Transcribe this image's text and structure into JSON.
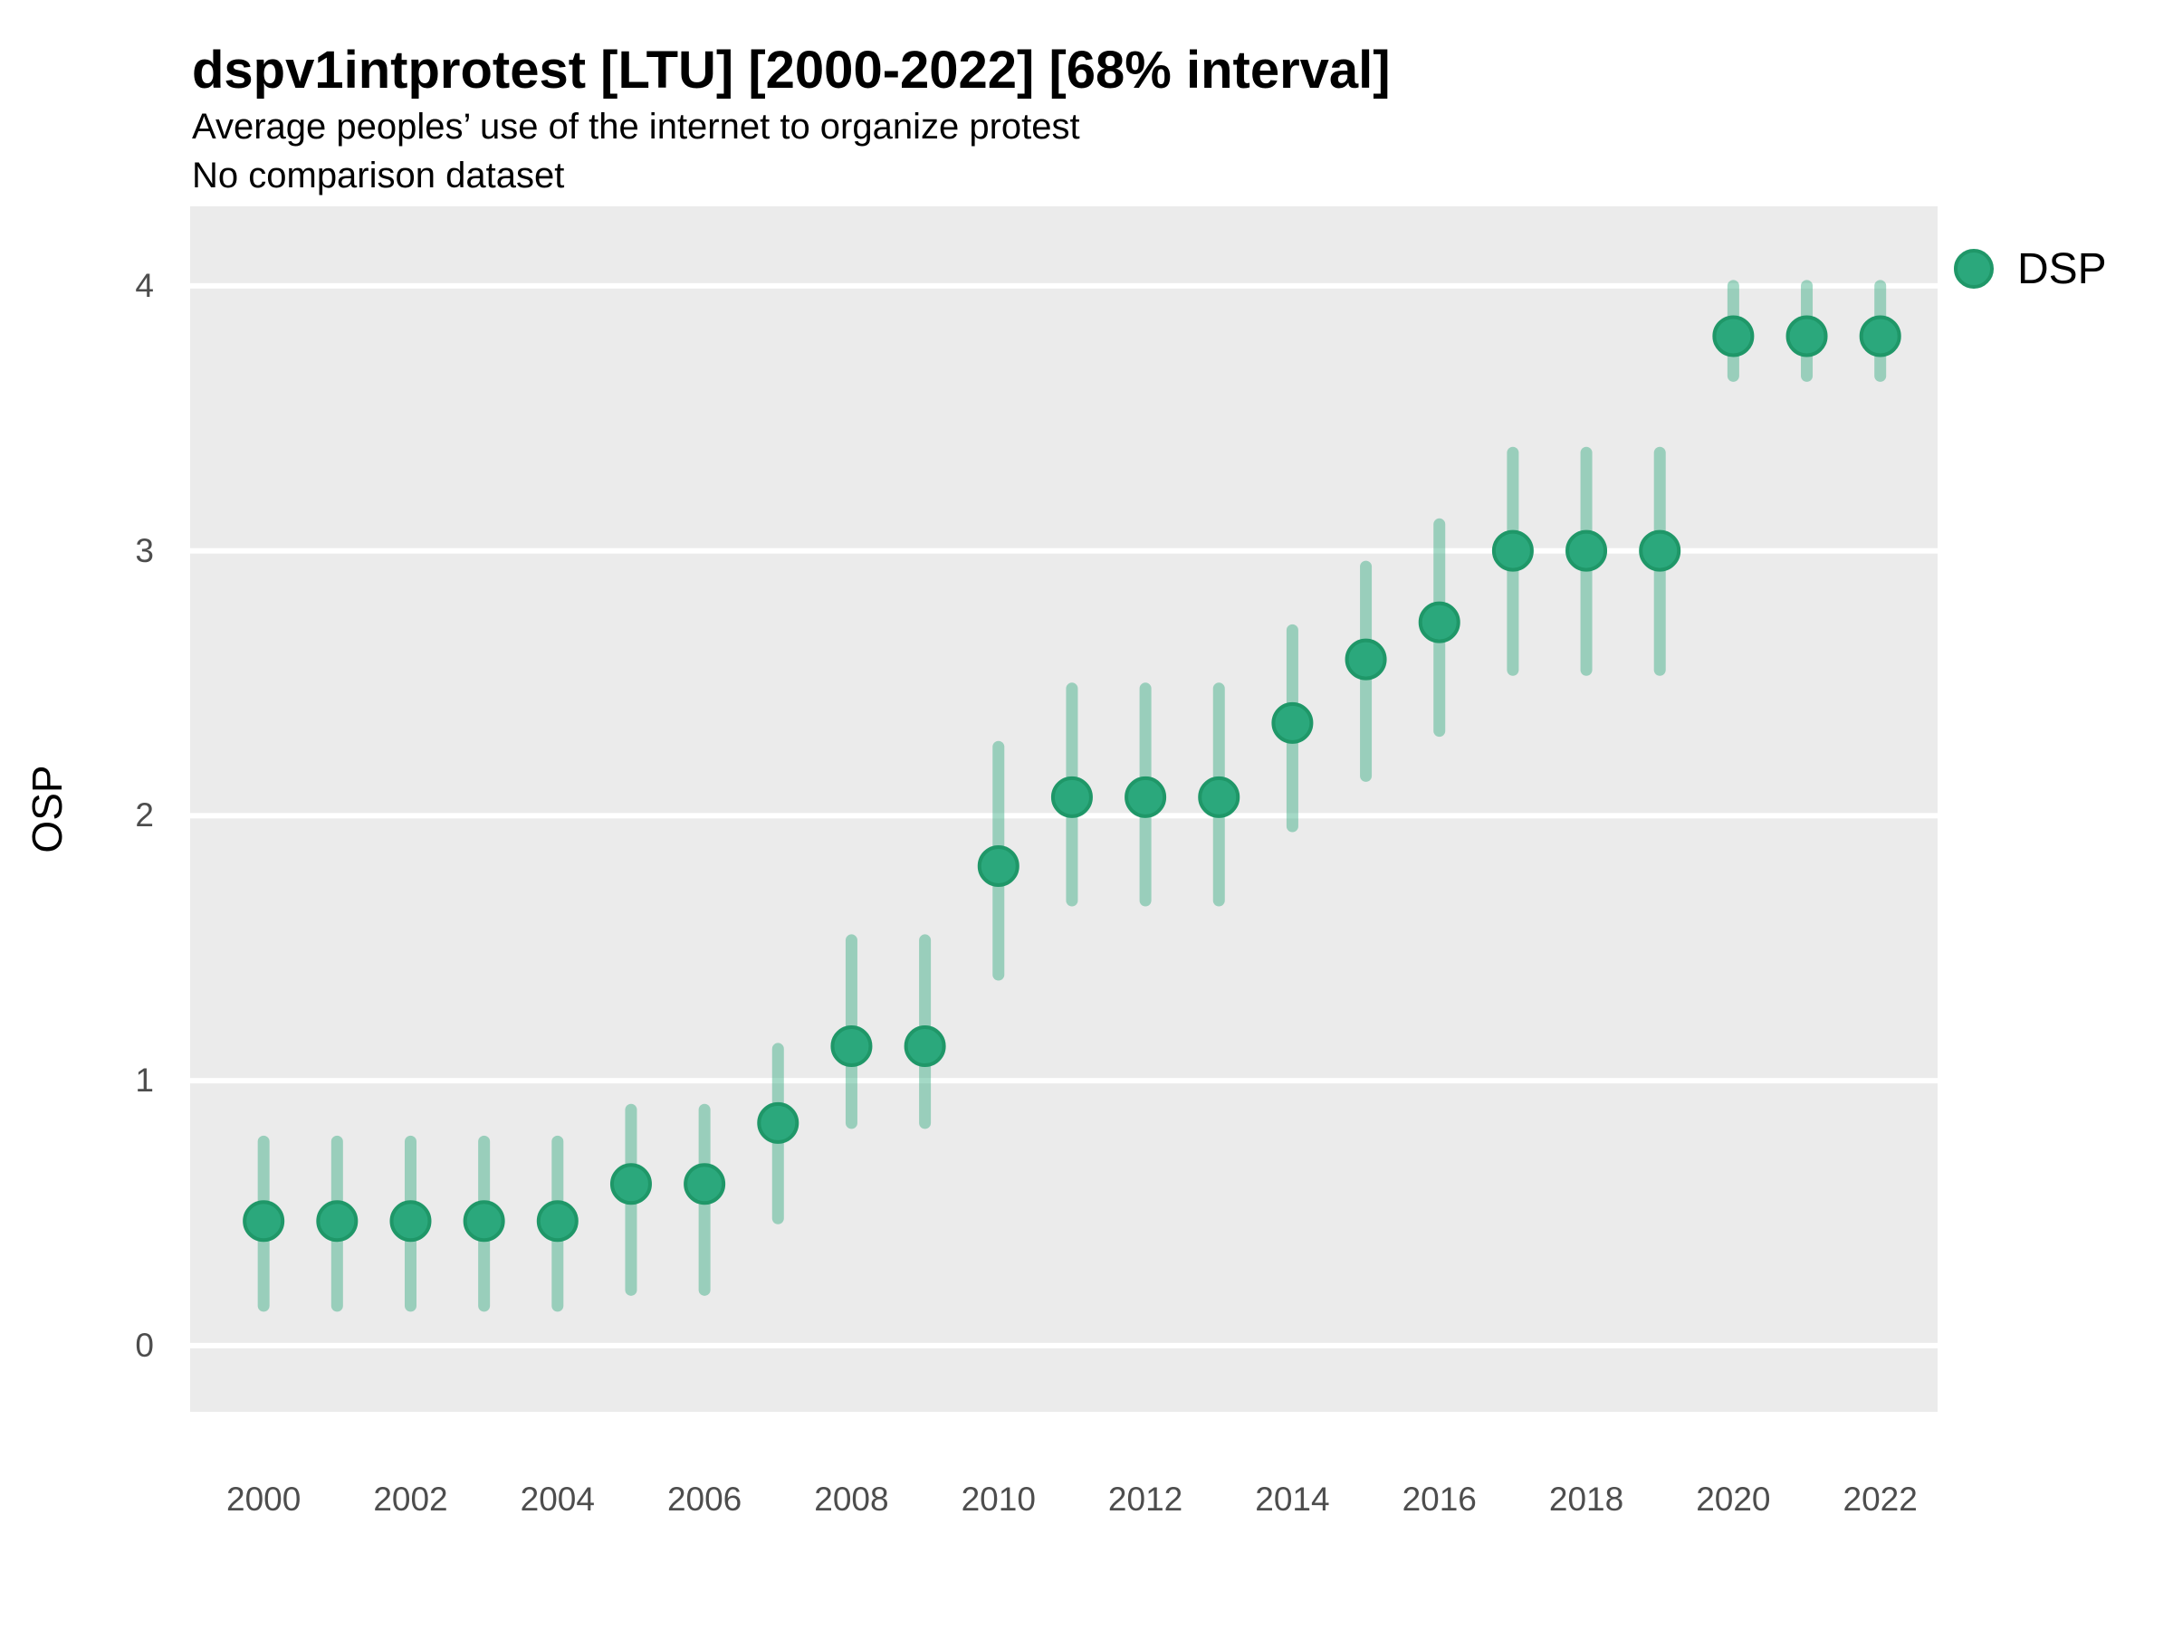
{
  "header": {
    "title": "dspv1intprotest [LTU] [2000-2022] [68% interval]",
    "subtitle": "Average peoples’ use of the internet to organize protest",
    "note": "No comparison dataset"
  },
  "legend": {
    "label": "DSP",
    "position": "top-right-outside"
  },
  "colors": {
    "point_fill": "#2BA87C",
    "point_stroke": "#1F9768",
    "interval_line": "rgba(43,168,124,0.43)",
    "panel_bg": "#EBEBEB",
    "gridline": "#FFFFFF",
    "tick_text": "#4D4D4D",
    "text": "#000000"
  },
  "chart_data": {
    "type": "scatter",
    "subtype": "pointrange",
    "title": "dspv1intprotest [LTU] [2000-2022] [68% interval]",
    "subtitle": "Average peoples’ use of the internet to organize protest",
    "note": "No comparison dataset",
    "xlabel": "",
    "ylabel": "OSP",
    "series_name": "DSP",
    "interval_level": "68%",
    "x": [
      2000,
      2001,
      2002,
      2003,
      2004,
      2005,
      2006,
      2007,
      2008,
      2009,
      2010,
      2011,
      2012,
      2013,
      2014,
      2015,
      2016,
      2017,
      2018,
      2019,
      2020,
      2021,
      2022
    ],
    "values": [
      0.47,
      0.47,
      0.47,
      0.47,
      0.47,
      0.61,
      0.61,
      0.84,
      1.13,
      1.13,
      1.81,
      2.07,
      2.07,
      2.07,
      2.35,
      2.59,
      2.73,
      3.0,
      3.0,
      3.0,
      3.81,
      3.81,
      3.81
    ],
    "interval_low": [
      0.15,
      0.15,
      0.15,
      0.15,
      0.15,
      0.21,
      0.21,
      0.48,
      0.84,
      0.84,
      1.4,
      1.68,
      1.68,
      1.68,
      1.96,
      2.15,
      2.32,
      2.55,
      2.55,
      2.55,
      3.66,
      3.66,
      3.66
    ],
    "interval_high": [
      0.77,
      0.77,
      0.77,
      0.77,
      0.77,
      0.89,
      0.89,
      1.12,
      1.53,
      1.53,
      2.26,
      2.48,
      2.48,
      2.48,
      2.7,
      2.94,
      3.1,
      3.37,
      3.37,
      3.37,
      4.0,
      4.0,
      4.0
    ],
    "x_ticks": [
      2000,
      2002,
      2004,
      2006,
      2008,
      2010,
      2012,
      2014,
      2016,
      2018,
      2020,
      2022
    ],
    "y_ticks": [
      0,
      1,
      2,
      3,
      4
    ],
    "x_range": [
      1999,
      2022.78
    ],
    "y_range": [
      -0.25,
      4.3
    ],
    "grid": "major-horizontal-only",
    "legend_position": "top-right-outside"
  }
}
